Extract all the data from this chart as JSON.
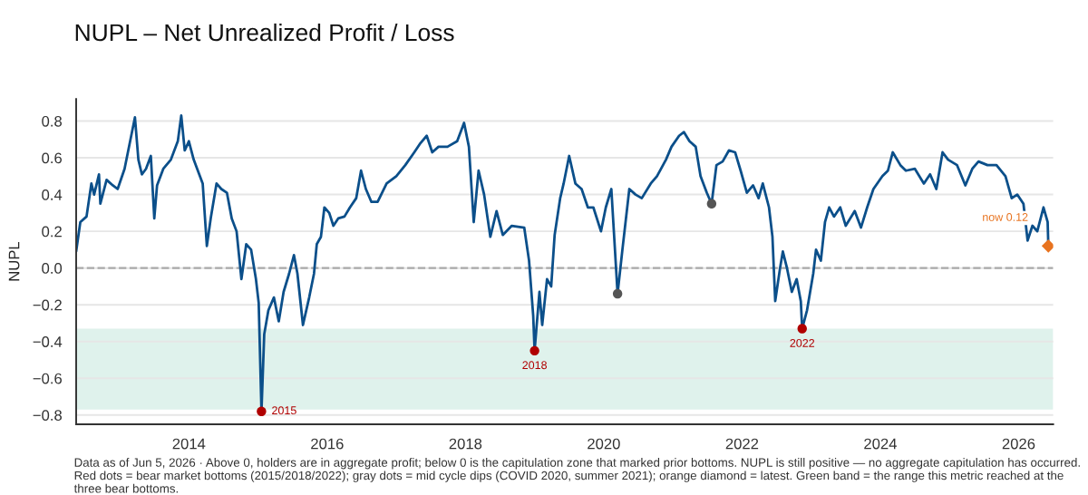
{
  "chart_data": {
    "type": "line",
    "title": "NUPL – Net Unrealized Profit / Loss",
    "ylabel": "NUPL",
    "xlim": [
      2012.37,
      2026.5
    ],
    "xticks": [
      2014,
      2016,
      2018,
      2020,
      2022,
      2024,
      2026
    ],
    "ylim": [
      -0.85,
      0.92
    ],
    "yticks": [
      {
        "value": -0.8,
        "label": "−0.8"
      },
      {
        "value": -0.6,
        "label": "−0.6"
      },
      {
        "value": -0.4,
        "label": "−0.4"
      },
      {
        "value": -0.2,
        "label": "−0.2"
      },
      {
        "value": 0,
        "label": "0.0"
      },
      {
        "value": 0.2,
        "label": "0.2"
      },
      {
        "value": 0.4,
        "label": "0.4"
      },
      {
        "value": 0.6,
        "label": "0.6"
      },
      {
        "value": 0.8,
        "label": "0.8"
      }
    ],
    "grid": "y",
    "legend": false,
    "ref_lines": [
      {
        "axis": "y",
        "value": 0,
        "color": "#aaaaaa",
        "line_style": "dashed"
      }
    ],
    "bands": [
      {
        "axis": "y",
        "from": -0.77,
        "to": -0.33,
        "color": "#dff2ec"
      }
    ],
    "series": [
      {
        "color": "#0b4f8a",
        "marker": "none",
        "line_style": "solid",
        "x": [
          2012.37,
          2012.43,
          2012.52,
          2012.59,
          2012.63,
          2012.7,
          2012.72,
          2012.81,
          2012.9,
          2012.97,
          2013.07,
          2013.22,
          2013.27,
          2013.32,
          2013.38,
          2013.45,
          2013.5,
          2013.54,
          2013.63,
          2013.74,
          2013.84,
          2013.89,
          2013.94,
          2014.0,
          2014.07,
          2014.13,
          2014.2,
          2014.26,
          2014.32,
          2014.4,
          2014.47,
          2014.55,
          2014.62,
          2014.69,
          2014.76,
          2014.83,
          2014.9,
          2014.97,
          2015.01,
          2015.05,
          2015.09,
          2015.15,
          2015.23,
          2015.3,
          2015.37,
          2015.45,
          2015.52,
          2015.57,
          2015.65,
          2015.74,
          2015.81,
          2015.85,
          2015.91,
          2015.96,
          2016.03,
          2016.09,
          2016.16,
          2016.25,
          2016.33,
          2016.42,
          2016.49,
          2016.56,
          2016.64,
          2016.73,
          2016.86,
          2017.0,
          2017.13,
          2017.26,
          2017.35,
          2017.44,
          2017.52,
          2017.61,
          2017.74,
          2017.88,
          2017.98,
          2018.05,
          2018.12,
          2018.19,
          2018.27,
          2018.36,
          2018.45,
          2018.54,
          2018.67,
          2018.85,
          2018.92,
          2018.98,
          2019.0,
          2019.07,
          2019.11,
          2019.18,
          2019.24,
          2019.29,
          2019.37,
          2019.42,
          2019.5,
          2019.59,
          2019.68,
          2019.77,
          2019.85,
          2019.96,
          2020.03,
          2020.11,
          2020.2,
          2020.27,
          2020.37,
          2020.46,
          2020.55,
          2020.68,
          2020.77,
          2020.9,
          2020.98,
          2021.09,
          2021.16,
          2021.24,
          2021.33,
          2021.4,
          2021.49,
          2021.56,
          2021.63,
          2021.72,
          2021.81,
          2021.9,
          2021.98,
          2022.07,
          2022.16,
          2022.24,
          2022.3,
          2022.39,
          2022.44,
          2022.48,
          2022.55,
          2022.59,
          2022.65,
          2022.72,
          2022.79,
          2022.85,
          2022.87,
          2022.94,
          2023.03,
          2023.07,
          2023.14,
          2023.2,
          2023.26,
          2023.33,
          2023.42,
          2023.5,
          2023.63,
          2023.72,
          2023.81,
          2023.9,
          2024.03,
          2024.11,
          2024.18,
          2024.29,
          2024.37,
          2024.5,
          2024.63,
          2024.72,
          2024.81,
          2024.9,
          2024.98,
          2025.11,
          2025.23,
          2025.33,
          2025.42,
          2025.55,
          2025.68,
          2025.81,
          2025.9,
          2025.98,
          2026.07,
          2026.13,
          2026.2,
          2026.27,
          2026.36,
          2026.42,
          2026.43
        ],
        "values": [
          0.09,
          0.25,
          0.28,
          0.46,
          0.4,
          0.51,
          0.35,
          0.48,
          0.45,
          0.43,
          0.54,
          0.82,
          0.59,
          0.51,
          0.54,
          0.61,
          0.27,
          0.45,
          0.54,
          0.59,
          0.69,
          0.83,
          0.64,
          0.69,
          0.59,
          0.53,
          0.46,
          0.12,
          0.28,
          0.46,
          0.43,
          0.41,
          0.27,
          0.2,
          -0.06,
          0.13,
          0.1,
          -0.06,
          -0.19,
          -0.78,
          -0.36,
          -0.23,
          -0.16,
          -0.29,
          -0.13,
          -0.03,
          0.07,
          -0.03,
          -0.31,
          -0.16,
          -0.03,
          0.13,
          0.17,
          0.33,
          0.3,
          0.23,
          0.27,
          0.28,
          0.33,
          0.38,
          0.53,
          0.43,
          0.36,
          0.36,
          0.46,
          0.5,
          0.56,
          0.63,
          0.68,
          0.72,
          0.63,
          0.66,
          0.66,
          0.69,
          0.79,
          0.66,
          0.25,
          0.53,
          0.4,
          0.17,
          0.31,
          0.18,
          0.23,
          0.22,
          0.04,
          -0.26,
          -0.45,
          -0.13,
          -0.31,
          -0.06,
          -0.1,
          0.18,
          0.38,
          0.46,
          0.61,
          0.46,
          0.43,
          0.33,
          0.33,
          0.2,
          0.33,
          0.43,
          -0.14,
          0.1,
          0.43,
          0.4,
          0.38,
          0.46,
          0.5,
          0.59,
          0.66,
          0.72,
          0.74,
          0.69,
          0.66,
          0.5,
          0.41,
          0.35,
          0.56,
          0.58,
          0.64,
          0.63,
          0.53,
          0.41,
          0.45,
          0.38,
          0.46,
          0.33,
          0.17,
          -0.18,
          0.0,
          0.09,
          0.0,
          -0.13,
          -0.06,
          -0.18,
          -0.33,
          -0.23,
          -0.03,
          0.1,
          0.04,
          0.25,
          0.33,
          0.28,
          0.33,
          0.23,
          0.31,
          0.22,
          0.33,
          0.43,
          0.5,
          0.53,
          0.63,
          0.56,
          0.53,
          0.54,
          0.46,
          0.51,
          0.43,
          0.63,
          0.59,
          0.56,
          0.45,
          0.54,
          0.58,
          0.56,
          0.56,
          0.5,
          0.38,
          0.4,
          0.35,
          0.15,
          0.23,
          0.2,
          0.33,
          0.25,
          0.12
        ]
      },
      {
        "type": "scatter",
        "color": "#b00000",
        "marker": "circle",
        "x": [
          2015.05,
          2019.0,
          2022.87
        ],
        "values": [
          -0.78,
          -0.45,
          -0.33
        ]
      },
      {
        "type": "scatter",
        "color": "#555555",
        "marker": "circle",
        "x": [
          2020.2,
          2021.56
        ],
        "values": [
          -0.14,
          0.35
        ]
      },
      {
        "type": "scatter",
        "color": "#e8731f",
        "marker": "diamond",
        "x": [
          2026.43
        ],
        "values": [
          0.12
        ]
      }
    ],
    "annotations": [
      {
        "text": "2015",
        "x": 2015.05,
        "y": -0.78
      },
      {
        "text": "2018",
        "x": 2019.0,
        "y": -0.45
      },
      {
        "text": "2022",
        "x": 2022.87,
        "y": -0.33
      },
      {
        "text": "now 0.12",
        "x": 2026.43,
        "y": 0.12
      },
      "Data as of Jun 5, 2026 · Above 0, holders are in aggregate profit; below 0 is the capitulation zone that marked prior bottoms. NUPL is still positive — no aggregate capitulation has occurred. Red dots = bear market bottoms (2015/2018/2022); gray dots = mid cycle dips (COVID 2020, summer 2021); orange diamond = latest. Green band = the range this metric reached at the three bear bottoms."
    ]
  }
}
